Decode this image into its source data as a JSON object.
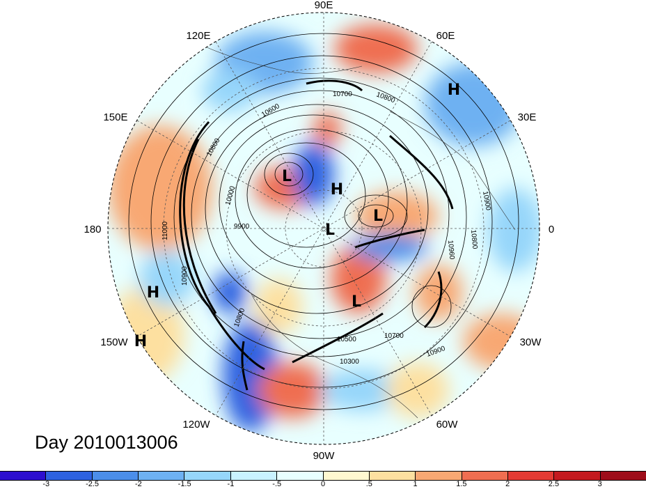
{
  "map": {
    "projection": "north-polar-stereographic",
    "longitude_labels": [
      "90E",
      "60E",
      "30E",
      "0",
      "30W",
      "60W",
      "90W",
      "120W",
      "150W",
      "180",
      "150E",
      "120E"
    ],
    "pressure_centers": [
      "H",
      "L",
      "H",
      "L",
      "L",
      "L",
      "H",
      "H"
    ],
    "contour_labels": [
      "10700",
      "10800",
      "10600",
      "10800",
      "10000",
      "9900",
      "11000",
      "10900",
      "10800",
      "10500",
      "10700",
      "10900",
      "10300",
      "10900",
      "10960",
      "10800"
    ]
  },
  "caption": {
    "day_label": "Day 2010013006"
  },
  "colorbar": {
    "tick_labels": [
      "-3",
      "-2.5",
      "-2",
      "-1.5",
      "-1",
      "-.5",
      "0",
      ".5",
      "1",
      "1.5",
      "2",
      "2.5",
      "3"
    ],
    "colors": [
      "#2c0fcf",
      "#2e62e0",
      "#4b8ee9",
      "#6eb1f2",
      "#96d6fa",
      "#c9f2ff",
      "#e8ffff",
      "#fff8d0",
      "#fde0a0",
      "#f8a873",
      "#ef6e51",
      "#e43b34",
      "#c41a1f",
      "#9e0d1a"
    ]
  }
}
